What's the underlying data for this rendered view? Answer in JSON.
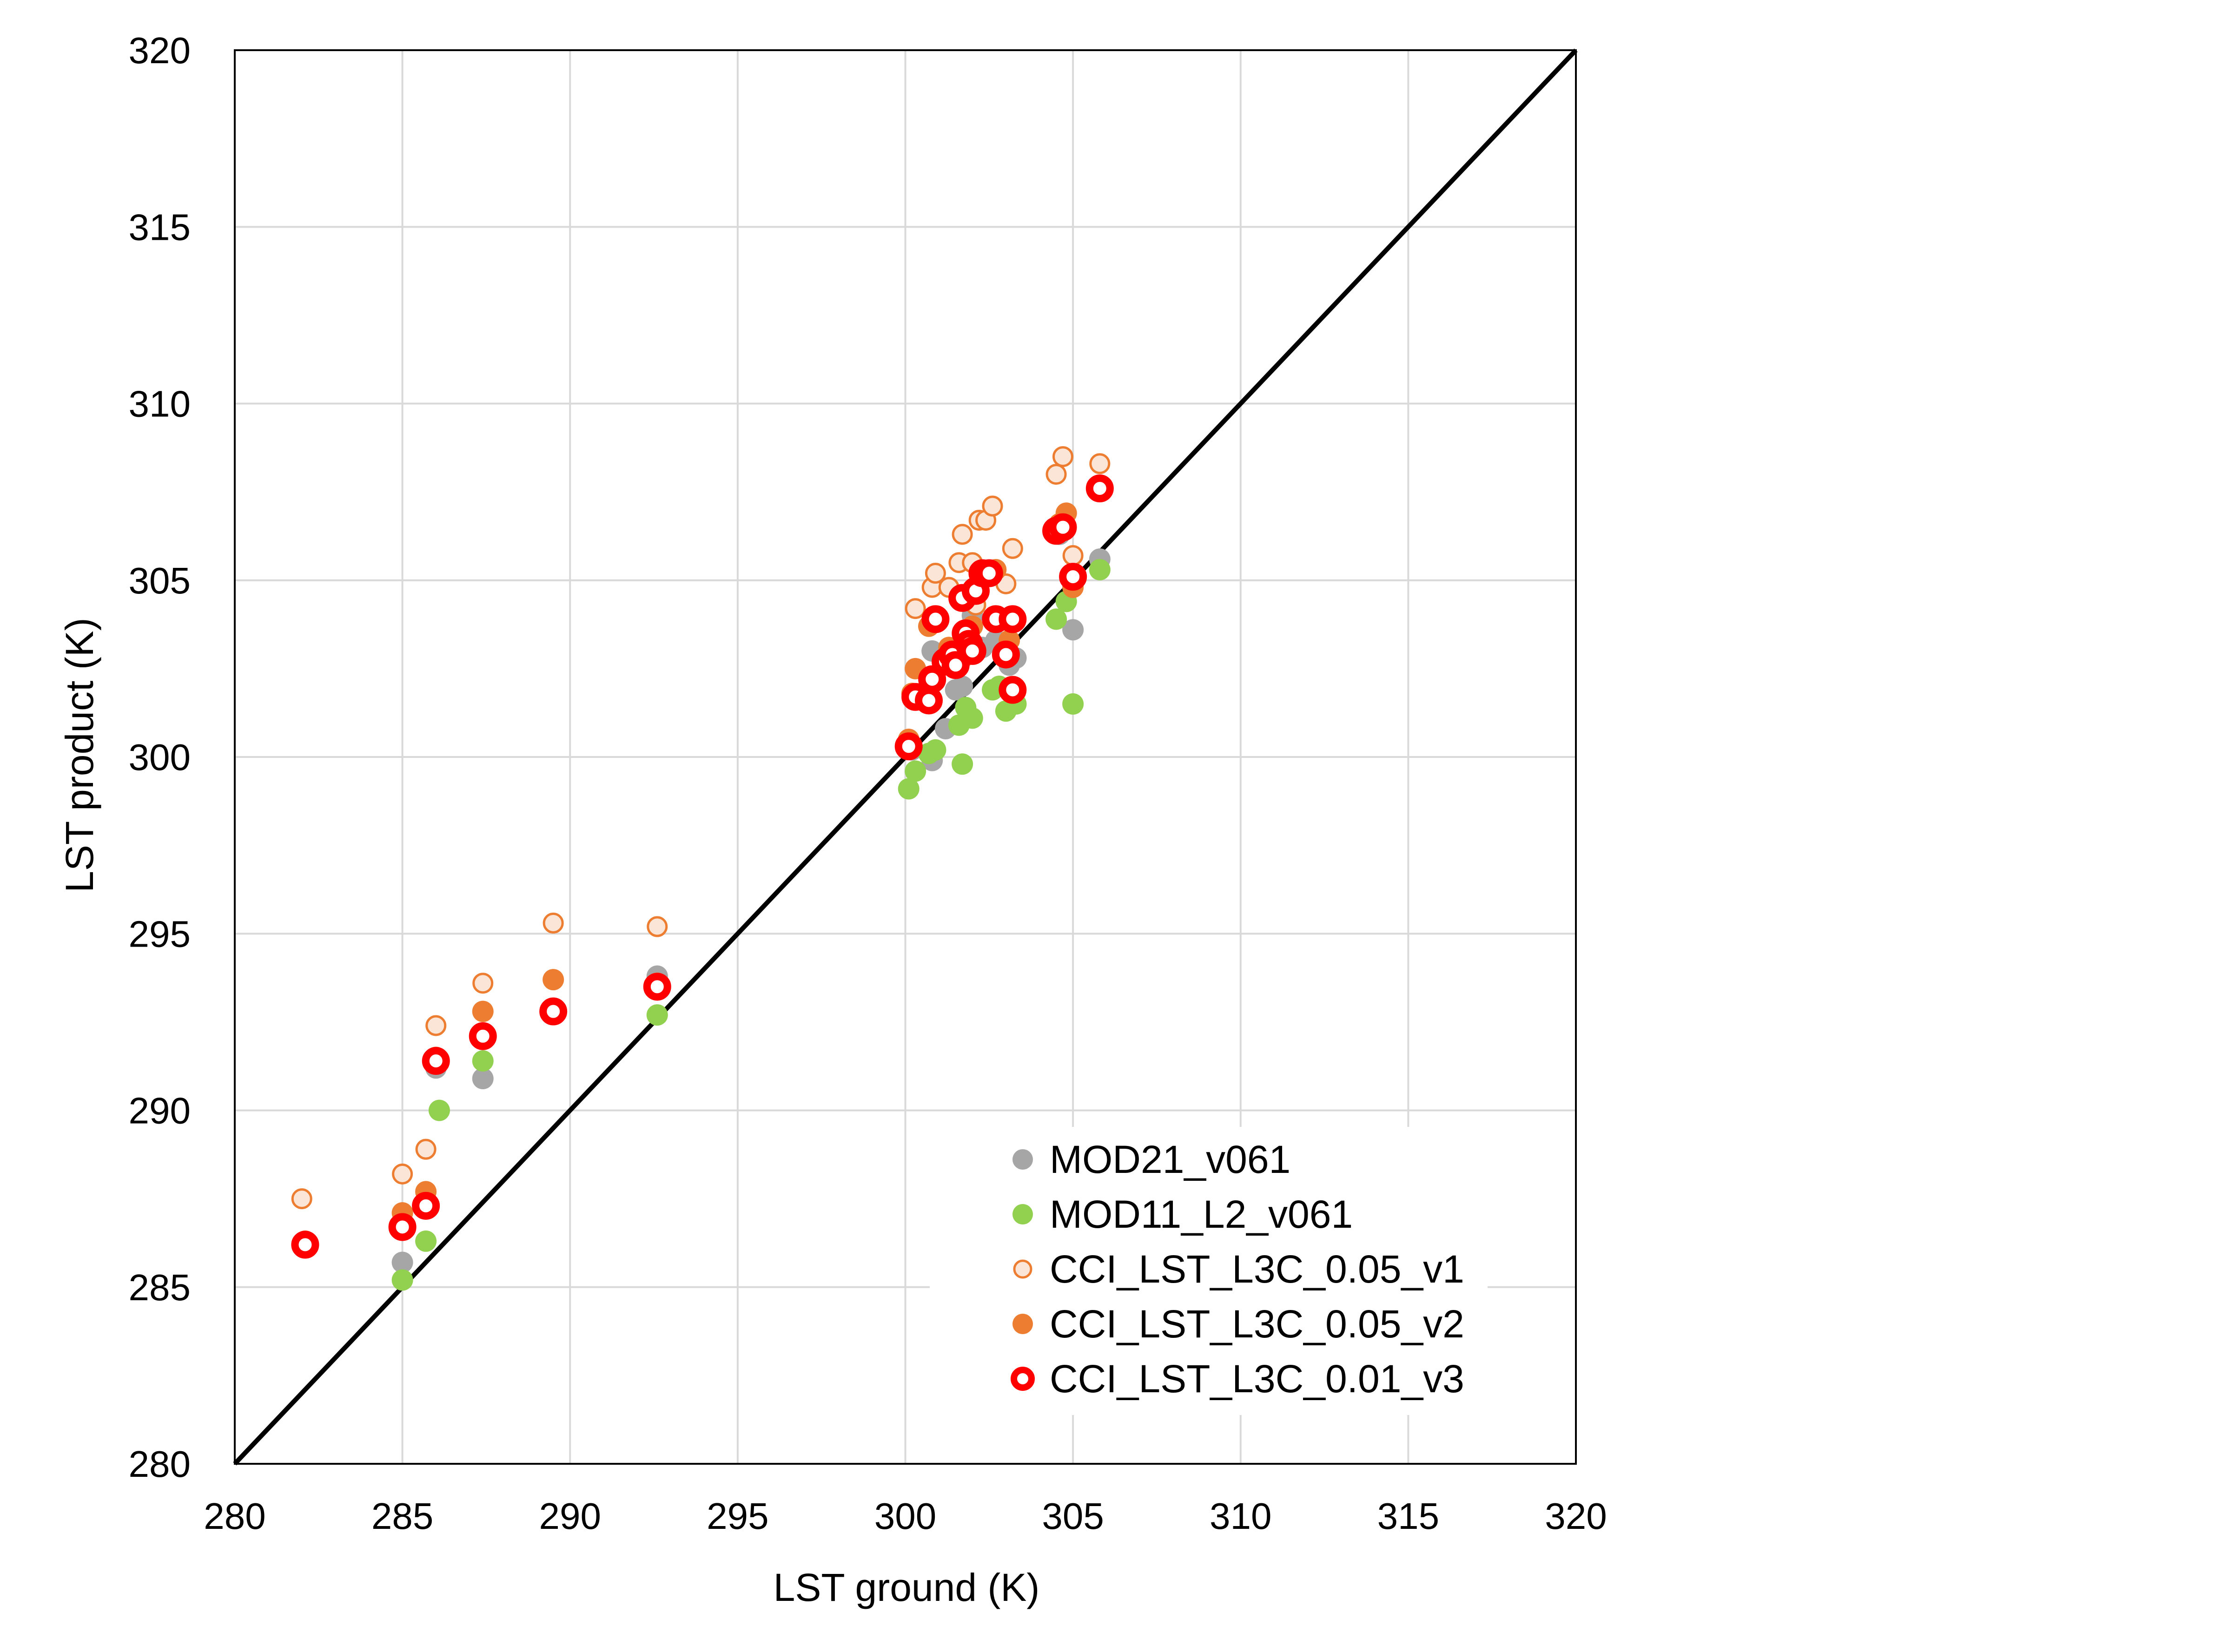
{
  "chart_data": {
    "type": "scatter",
    "title": "",
    "xlabel": "LST ground (K)",
    "ylabel": "LST product (K)",
    "xlim": [
      280,
      320
    ],
    "ylim": [
      280,
      320
    ],
    "xticks": [
      280,
      285,
      290,
      295,
      300,
      305,
      310,
      315,
      320
    ],
    "yticks": [
      280,
      285,
      290,
      295,
      300,
      305,
      310,
      315,
      320
    ],
    "grid": true,
    "legend_position": "bottom-right",
    "reference_line": {
      "name": "1:1 line",
      "from": [
        280,
        280
      ],
      "to": [
        320,
        320
      ],
      "color": "#000000"
    },
    "series": [
      {
        "name": "MOD21_v061",
        "marker": "filled",
        "fill": "#a6a6a6",
        "stroke": "#a6a6a6",
        "points": [
          [
            285.0,
            285.7
          ],
          [
            286.0,
            291.2
          ],
          [
            287.4,
            290.9
          ],
          [
            292.6,
            293.8
          ],
          [
            300.2,
            300.2
          ],
          [
            300.8,
            303.0
          ],
          [
            300.8,
            299.9
          ],
          [
            301.5,
            301.9
          ],
          [
            301.7,
            302.0
          ],
          [
            302.3,
            303.1
          ],
          [
            302.7,
            303.3
          ],
          [
            303.1,
            302.6
          ],
          [
            303.3,
            302.8
          ],
          [
            304.6,
            306.3
          ],
          [
            305.0,
            303.6
          ],
          [
            305.8,
            305.6
          ],
          [
            302.0,
            304.0
          ],
          [
            301.2,
            300.8
          ]
        ]
      },
      {
        "name": "MOD11_L2_v061",
        "marker": "filled",
        "fill": "#92d050",
        "stroke": "#92d050",
        "points": [
          [
            285.0,
            285.2
          ],
          [
            285.7,
            286.3
          ],
          [
            286.1,
            290.0
          ],
          [
            287.4,
            291.4
          ],
          [
            292.6,
            292.7
          ],
          [
            300.1,
            299.1
          ],
          [
            300.3,
            299.6
          ],
          [
            300.7,
            300.1
          ],
          [
            300.9,
            300.2
          ],
          [
            301.6,
            300.9
          ],
          [
            301.7,
            299.8
          ],
          [
            301.8,
            301.4
          ],
          [
            302.0,
            301.1
          ],
          [
            302.6,
            301.9
          ],
          [
            302.8,
            302.0
          ],
          [
            303.0,
            301.3
          ],
          [
            303.3,
            301.5
          ],
          [
            304.5,
            303.9
          ],
          [
            304.8,
            304.4
          ],
          [
            305.0,
            301.5
          ],
          [
            305.8,
            305.3
          ]
        ]
      },
      {
        "name": "CCI_LST_L3C_0.05_v1",
        "marker": "hollow",
        "fill": "#fbe5d6",
        "stroke": "#ed7d31",
        "points": [
          [
            282.0,
            287.5
          ],
          [
            285.0,
            288.2
          ],
          [
            285.7,
            288.9
          ],
          [
            286.0,
            292.4
          ],
          [
            287.4,
            293.6
          ],
          [
            289.5,
            295.3
          ],
          [
            292.6,
            295.2
          ],
          [
            300.3,
            304.2
          ],
          [
            300.8,
            304.8
          ],
          [
            300.9,
            305.2
          ],
          [
            301.3,
            304.8
          ],
          [
            301.6,
            305.5
          ],
          [
            301.7,
            306.3
          ],
          [
            301.8,
            304.6
          ],
          [
            302.0,
            305.5
          ],
          [
            302.1,
            304.3
          ],
          [
            302.2,
            306.7
          ],
          [
            302.4,
            306.7
          ],
          [
            302.6,
            307.1
          ],
          [
            303.0,
            304.9
          ],
          [
            303.2,
            305.9
          ],
          [
            304.5,
            308.0
          ],
          [
            304.7,
            308.5
          ],
          [
            305.0,
            305.7
          ],
          [
            305.8,
            308.3
          ]
        ]
      },
      {
        "name": "CCI_LST_L3C_0.05_v2",
        "marker": "filled",
        "fill": "#ed7d31",
        "stroke": "#ed7d31",
        "points": [
          [
            282.1,
            286.3
          ],
          [
            285.0,
            287.1
          ],
          [
            285.7,
            287.7
          ],
          [
            286.0,
            291.5
          ],
          [
            287.4,
            292.8
          ],
          [
            289.5,
            293.7
          ],
          [
            292.6,
            293.6
          ],
          [
            300.1,
            300.5
          ],
          [
            300.2,
            301.8
          ],
          [
            300.3,
            302.5
          ],
          [
            300.7,
            303.7
          ],
          [
            301.3,
            303.1
          ],
          [
            301.7,
            302.8
          ],
          [
            302.0,
            303.7
          ],
          [
            302.3,
            305.1
          ],
          [
            302.7,
            305.3
          ],
          [
            303.1,
            303.3
          ],
          [
            304.6,
            306.6
          ],
          [
            304.8,
            306.9
          ],
          [
            305.0,
            304.8
          ],
          [
            305.8,
            307.6
          ]
        ]
      },
      {
        "name": "CCI_LST_L3C_0.01_v3",
        "marker": "hollow",
        "fill": "#ffffff",
        "stroke": "#ff0000",
        "points": [
          [
            282.1,
            286.2
          ],
          [
            285.0,
            286.7
          ],
          [
            285.7,
            287.3
          ],
          [
            286.0,
            291.4
          ],
          [
            287.4,
            292.1
          ],
          [
            289.5,
            292.8
          ],
          [
            292.6,
            293.5
          ],
          [
            300.1,
            300.3
          ],
          [
            300.3,
            301.7
          ],
          [
            300.7,
            301.6
          ],
          [
            300.8,
            302.2
          ],
          [
            300.9,
            303.9
          ],
          [
            301.2,
            302.7
          ],
          [
            301.4,
            302.9
          ],
          [
            301.5,
            302.6
          ],
          [
            301.7,
            304.5
          ],
          [
            301.8,
            303.5
          ],
          [
            301.9,
            303.2
          ],
          [
            302.0,
            303.0
          ],
          [
            302.1,
            304.7
          ],
          [
            302.3,
            305.2
          ],
          [
            302.5,
            305.2
          ],
          [
            302.7,
            303.9
          ],
          [
            303.0,
            302.9
          ],
          [
            303.2,
            303.9
          ],
          [
            303.2,
            301.9
          ],
          [
            304.5,
            306.4
          ],
          [
            304.7,
            306.5
          ],
          [
            305.0,
            305.1
          ],
          [
            305.8,
            307.6
          ]
        ]
      }
    ]
  }
}
